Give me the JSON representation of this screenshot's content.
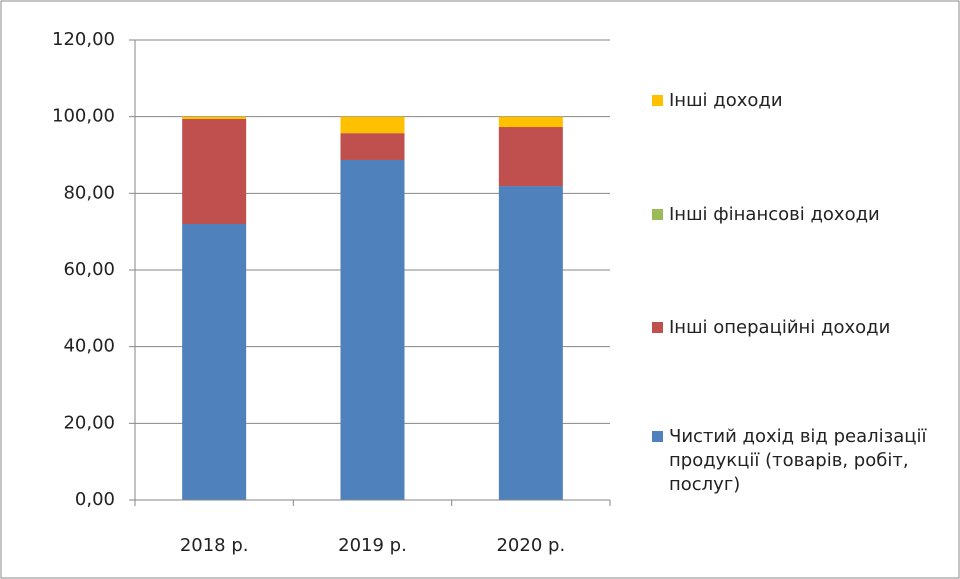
{
  "chart_data": {
    "type": "stacked_bar",
    "categories": [
      "2018 р.",
      "2019 р.",
      "2020 р."
    ],
    "series": [
      {
        "name": "Чистий дохід від реалізації продукції (товарів, робіт, послуг)",
        "color": "#4f81bd",
        "values": [
          72.0,
          88.7,
          81.9
        ]
      },
      {
        "name": "Інші операційні доходи",
        "color": "#c0504d",
        "values": [
          27.4,
          7.0,
          15.4
        ]
      },
      {
        "name": "Інші фінансові доходи",
        "color": "#9bbb59",
        "values": [
          0,
          0,
          0
        ]
      },
      {
        "name": "Інші доходи",
        "color": "#ffc000",
        "values": [
          0.6,
          4.3,
          2.7
        ]
      }
    ],
    "ylim": [
      0,
      120
    ],
    "yticks": [
      {
        "value": 0,
        "label": "0,00"
      },
      {
        "value": 20,
        "label": "20,00"
      },
      {
        "value": 40,
        "label": "40,00"
      },
      {
        "value": 60,
        "label": "60,00"
      },
      {
        "value": 80,
        "label": "80,00"
      },
      {
        "value": 100,
        "label": "100,00"
      },
      {
        "value": 120,
        "label": "120,00"
      }
    ],
    "grid": true
  }
}
